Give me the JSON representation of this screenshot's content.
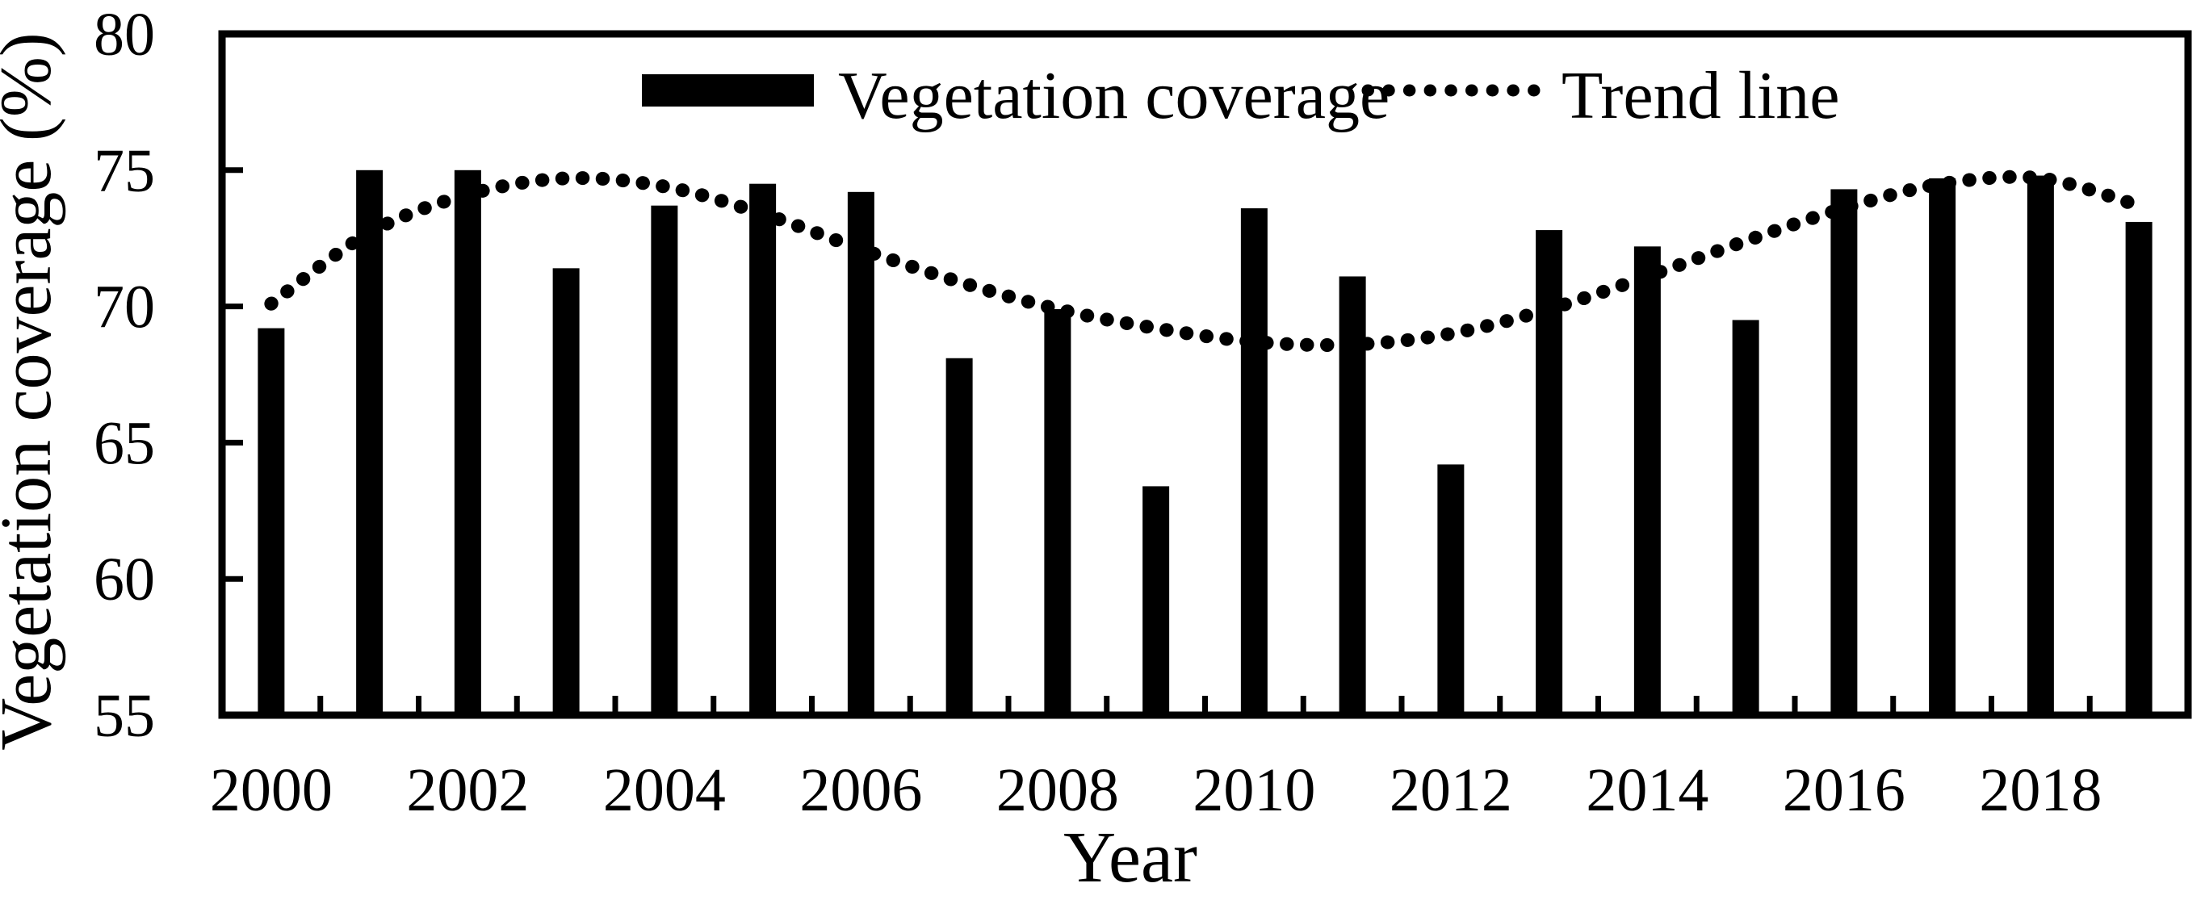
{
  "figure": {
    "background": "#ffffff",
    "foreground": "#000000"
  },
  "chart_data": {
    "type": "bar",
    "title": "",
    "xlabel": "Year",
    "ylabel": "Vegetation coverage (%)",
    "categories": [
      2000,
      2001,
      2002,
      2003,
      2004,
      2005,
      2006,
      2007,
      2008,
      2009,
      2010,
      2011,
      2012,
      2013,
      2014,
      2015,
      2016,
      2017,
      2018,
      2019
    ],
    "series": [
      {
        "name": "Vegetation coverage",
        "type": "bar",
        "color": "#000000",
        "values": [
          69.2,
          75.0,
          75.0,
          71.4,
          73.7,
          74.5,
          74.2,
          68.1,
          69.9,
          63.4,
          73.6,
          71.1,
          64.2,
          72.8,
          72.2,
          69.5,
          74.3,
          74.7,
          74.8,
          73.1
        ]
      },
      {
        "name": "Trend line",
        "type": "dotted-line",
        "color": "#000000",
        "values": [
          70.1,
          72.7,
          74.1,
          74.7,
          74.4,
          73.4,
          72.1,
          70.9,
          69.9,
          69.2,
          68.7,
          68.6,
          69.0,
          69.9,
          71.1,
          72.4,
          73.6,
          74.5,
          74.7,
          73.7
        ]
      }
    ],
    "ylim": [
      55,
      80
    ],
    "yticks": [
      55,
      60,
      65,
      70,
      75,
      80
    ],
    "xtick_labels": [
      "2000",
      "2002",
      "2004",
      "2006",
      "2008",
      "2010",
      "2012",
      "2014",
      "2016",
      "2018"
    ],
    "xtick_every": 2,
    "grid": false,
    "plot_border": "box",
    "tick_direction": "inside",
    "legend_position": "top-center-inside"
  },
  "legend": {
    "items": [
      {
        "label": "Vegetation coverage",
        "swatch": "filled-bar"
      },
      {
        "label": "Trend line",
        "swatch": "dotted-line"
      }
    ]
  }
}
